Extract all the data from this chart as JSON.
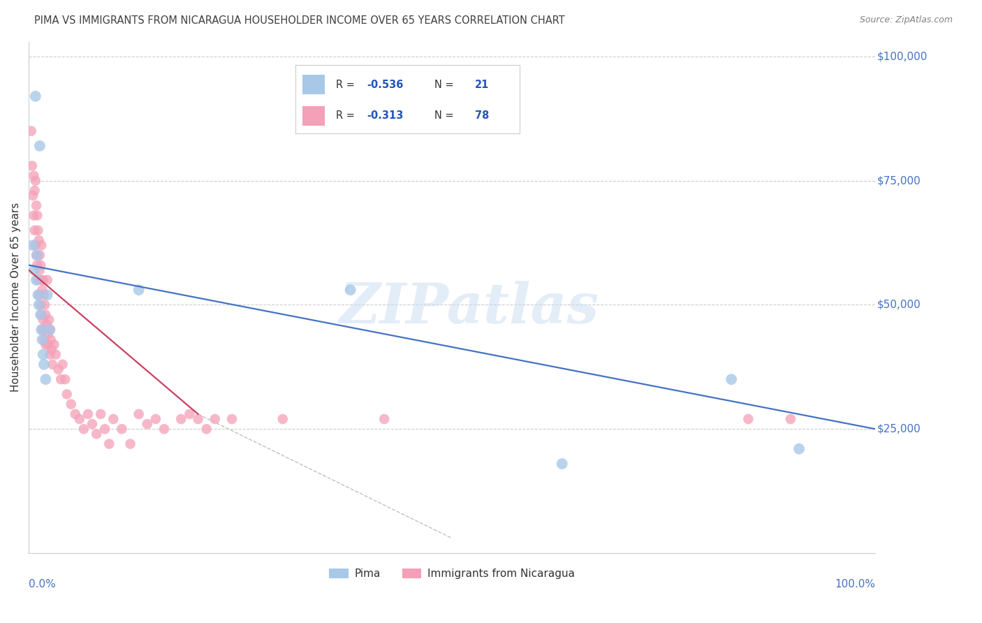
{
  "title": "PIMA VS IMMIGRANTS FROM NICARAGUA HOUSEHOLDER INCOME OVER 65 YEARS CORRELATION CHART",
  "source": "Source: ZipAtlas.com",
  "ylabel": "Householder Income Over 65 years",
  "legend_label1": "Pima",
  "legend_label2": "Immigrants from Nicaragua",
  "blue_color": "#a8c8e8",
  "pink_color": "#f4a0b8",
  "blue_line_color": "#4472c4",
  "pink_line_color": "#c84060",
  "gray_line_color": "#b0b0b0",
  "r_n_color": "#2255bb",
  "text_dark": "#333333",
  "background_color": "#ffffff",
  "grid_color": "#cccccc",
  "title_color": "#404040",
  "axis_label_color": "#4472c4",
  "source_color": "#808080",
  "watermark_color": "#c8ddf0",
  "blue_line_x0": 0.0,
  "blue_line_y0": 58000,
  "blue_line_x1": 1.0,
  "blue_line_y1": 25000,
  "pink_line_x0": 0.0,
  "pink_line_y0": 57000,
  "pink_line_x1": 0.2,
  "pink_line_y1": 28000,
  "gray_line_x0": 0.2,
  "gray_line_y0": 28000,
  "gray_line_x1": 0.5,
  "gray_line_y1": 3000,
  "xmin": 0.0,
  "xmax": 1.0,
  "ymin": 0,
  "ymax": 103000,
  "yticks": [
    25000,
    50000,
    75000,
    100000
  ],
  "ytick_labels": [
    "$25,000",
    "$50,000",
    "$75,000",
    "$100,000"
  ],
  "blue_scatter_x": [
    0.008,
    0.013,
    0.005,
    0.007,
    0.009,
    0.01,
    0.011,
    0.012,
    0.014,
    0.015,
    0.016,
    0.017,
    0.018,
    0.02,
    0.022,
    0.025,
    0.13,
    0.38,
    0.63,
    0.83,
    0.91
  ],
  "blue_scatter_y": [
    92000,
    82000,
    62000,
    57000,
    55000,
    60000,
    52000,
    50000,
    48000,
    45000,
    43000,
    40000,
    38000,
    35000,
    52000,
    45000,
    53000,
    53000,
    18000,
    35000,
    21000
  ],
  "pink_scatter_x": [
    0.003,
    0.004,
    0.005,
    0.006,
    0.006,
    0.007,
    0.007,
    0.008,
    0.008,
    0.009,
    0.009,
    0.01,
    0.01,
    0.011,
    0.011,
    0.012,
    0.012,
    0.013,
    0.013,
    0.014,
    0.014,
    0.015,
    0.015,
    0.015,
    0.016,
    0.016,
    0.017,
    0.017,
    0.018,
    0.018,
    0.019,
    0.019,
    0.02,
    0.02,
    0.021,
    0.022,
    0.022,
    0.023,
    0.024,
    0.025,
    0.025,
    0.026,
    0.027,
    0.028,
    0.03,
    0.032,
    0.035,
    0.038,
    0.04,
    0.043,
    0.045,
    0.05,
    0.055,
    0.06,
    0.065,
    0.07,
    0.075,
    0.08,
    0.085,
    0.09,
    0.095,
    0.1,
    0.11,
    0.12,
    0.13,
    0.14,
    0.15,
    0.16,
    0.18,
    0.19,
    0.2,
    0.21,
    0.22,
    0.24,
    0.3,
    0.42,
    0.85,
    0.9
  ],
  "pink_scatter_y": [
    85000,
    78000,
    72000,
    76000,
    68000,
    73000,
    65000,
    75000,
    62000,
    70000,
    60000,
    68000,
    58000,
    65000,
    55000,
    63000,
    52000,
    60000,
    57000,
    58000,
    50000,
    55000,
    48000,
    62000,
    53000,
    45000,
    55000,
    47000,
    52000,
    43000,
    50000,
    45000,
    48000,
    42000,
    46000,
    55000,
    44000,
    42000,
    47000,
    45000,
    40000,
    43000,
    41000,
    38000,
    42000,
    40000,
    37000,
    35000,
    38000,
    35000,
    32000,
    30000,
    28000,
    27000,
    25000,
    28000,
    26000,
    24000,
    28000,
    25000,
    22000,
    27000,
    25000,
    22000,
    28000,
    26000,
    27000,
    25000,
    27000,
    28000,
    27000,
    25000,
    27000,
    27000,
    27000,
    27000,
    27000,
    27000
  ]
}
